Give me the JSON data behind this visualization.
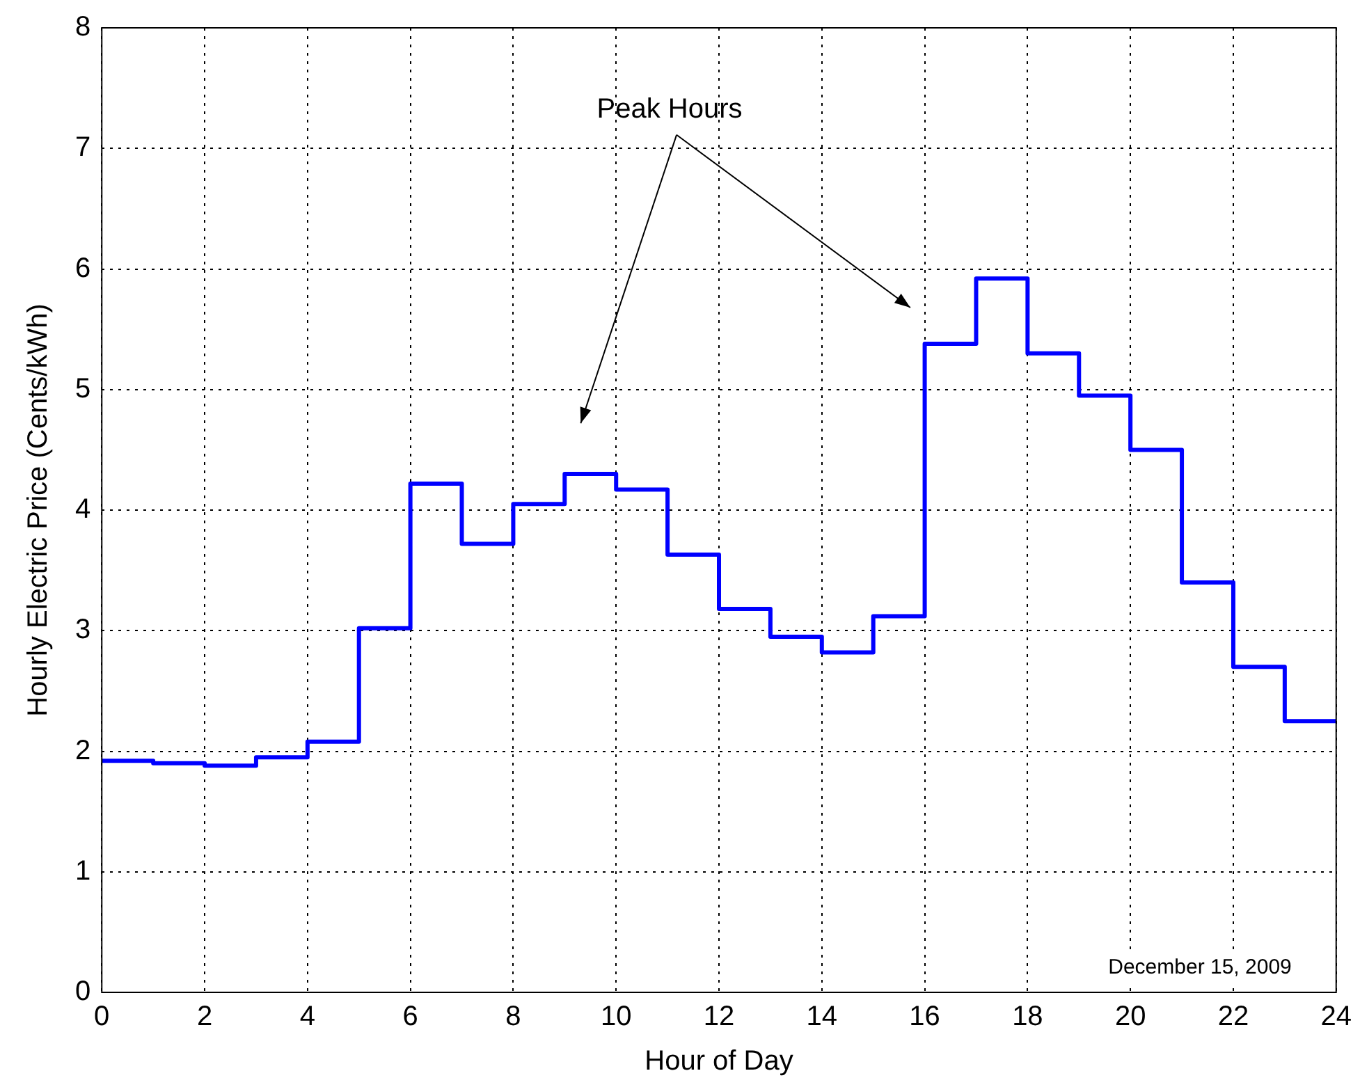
{
  "chart_data": {
    "type": "step",
    "xlabel": "Hour of Day",
    "ylabel": "Hourly Electric Price (Cents/kWh)",
    "x": [
      0,
      1,
      2,
      3,
      4,
      5,
      6,
      7,
      8,
      9,
      10,
      11,
      12,
      13,
      14,
      15,
      16,
      17,
      18,
      19,
      20,
      21,
      22,
      23,
      24
    ],
    "series": [
      {
        "color": "#0000ff",
        "values": [
          1.92,
          1.9,
          1.88,
          1.95,
          2.08,
          3.02,
          4.22,
          3.72,
          4.05,
          4.3,
          4.17,
          3.63,
          3.18,
          2.95,
          2.82,
          3.12,
          5.38,
          5.92,
          5.3,
          4.95,
          4.5,
          3.4,
          2.7,
          2.25,
          2.25
        ]
      }
    ],
    "xlim": [
      0,
      24
    ],
    "xticks": [
      0,
      2,
      4,
      6,
      8,
      10,
      12,
      14,
      16,
      18,
      20,
      22,
      24
    ],
    "ylim": [
      0,
      8
    ],
    "yticks": [
      0,
      1,
      2,
      3,
      4,
      5,
      6,
      7,
      8
    ],
    "grid": true,
    "legend": false,
    "marker": "none",
    "line_style": "solid",
    "annotations": [
      "Peak Hours",
      "December 15, 2009"
    ]
  }
}
